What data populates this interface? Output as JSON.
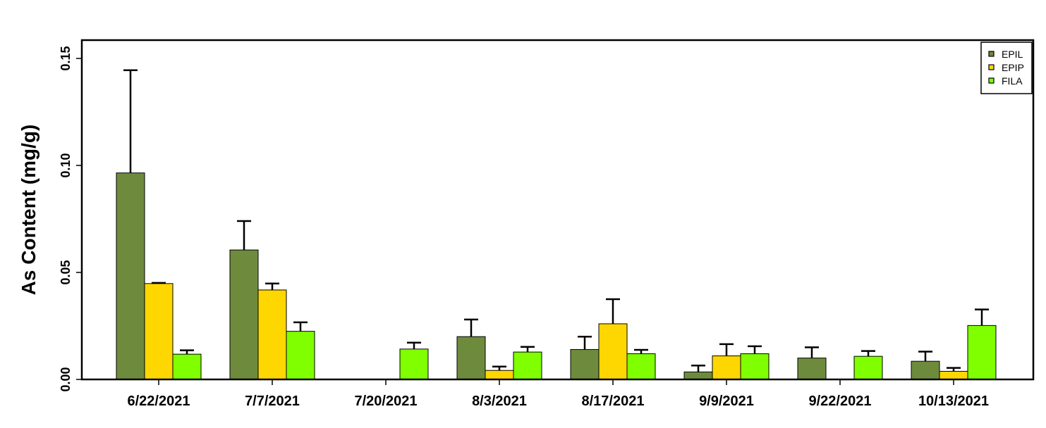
{
  "chart_data": {
    "type": "bar",
    "title": "",
    "xlabel": "",
    "ylabel": "As Content (mg/g)",
    "ylim": [
      0,
      0.16
    ],
    "yticks": [
      "0.00",
      "0.05",
      "0.10",
      "0.15"
    ],
    "ytick_values": [
      0,
      0.05,
      0.1,
      0.15
    ],
    "legend_position": "top-right",
    "grid": false,
    "categories": [
      "6/22/2021",
      "7/7/2021",
      "7/20/2021",
      "8/3/2021",
      "8/17/2021",
      "9/9/2021",
      "9/22/2021",
      "10/13/2021"
    ],
    "series": [
      {
        "name": "EPIL",
        "color": "#6E8B3D",
        "values": [
          0.0965,
          0.0605,
          null,
          0.02,
          0.014,
          0.0035,
          0.01,
          0.0085
        ],
        "errors": [
          0.048,
          0.0135,
          null,
          0.008,
          0.006,
          0.003,
          0.005,
          0.0045
        ]
      },
      {
        "name": "EPIP",
        "color": "#FFD700",
        "values": [
          0.0448,
          0.0418,
          null,
          0.0042,
          0.026,
          0.011,
          null,
          0.0038
        ],
        "errors": [
          0.0003,
          0.003,
          null,
          0.0018,
          0.0115,
          0.0055,
          null,
          0.0016
        ]
      },
      {
        "name": "FILA",
        "color": "#7FFF00",
        "values": [
          0.0118,
          0.0225,
          0.0142,
          0.0128,
          0.012,
          0.012,
          0.0108,
          0.0252
        ],
        "errors": [
          0.0018,
          0.0042,
          0.003,
          0.0024,
          0.0018,
          0.0035,
          0.0025,
          0.0075
        ]
      }
    ]
  }
}
